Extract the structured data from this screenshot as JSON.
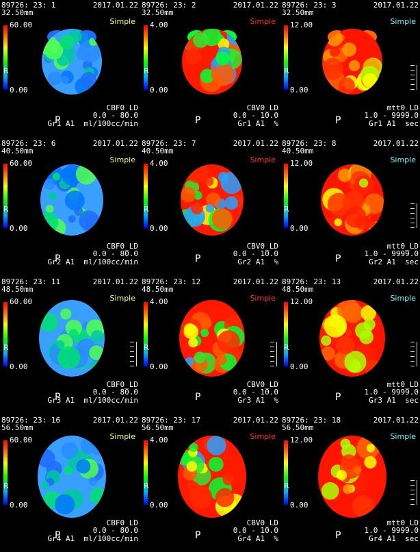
{
  "colorbar": {
    "stops": [
      "#ff0000",
      "#ff7a00",
      "#ffff00",
      "#00ff00",
      "#00b0ff",
      "#0000ff"
    ]
  },
  "rows": [
    {
      "panels": [
        {
          "id": "89726: 23: 1",
          "date": "2017.01.22",
          "slice": "32.50mm",
          "method": "Simple",
          "method_color": "#ffff66",
          "max": "60.00",
          "min": "0.00",
          "marker": "R",
          "map": "CBF0_LD",
          "range": "0.0 - 80.0",
          "units": "Gr1 A1  ml/100cc/min",
          "orient": "P",
          "scheme": "blue",
          "scale": false
        },
        {
          "id": "89726: 23: 2",
          "date": "2017.01.22",
          "slice": "32.50mm",
          "method": "Simple",
          "method_color": "#ff3333",
          "max": "4.00",
          "min": "0.00",
          "marker": "R",
          "map": "CBV0_LD",
          "range": "0.0 - 10.0",
          "units": "Gr1 A1  %",
          "orient": "P",
          "scheme": "red",
          "scale": false
        },
        {
          "id": "89726: 23: 3",
          "date": "2017.01.22",
          "slice": "32.50mm",
          "method": "Simple",
          "method_color": "#66ffff",
          "max": "12.00",
          "min": "0.00",
          "marker": "R",
          "map": "mtt0_LD",
          "range": "1.0 - 9999.0",
          "units": "Gr1 A1  sec",
          "orient": "P",
          "scheme": "hot",
          "scale": true
        }
      ]
    },
    {
      "panels": [
        {
          "id": "89726: 23: 6",
          "date": "2017.01.22",
          "slice": "40.50mm",
          "method": "Simple",
          "method_color": "#ffff66",
          "max": "60.00",
          "min": "0.00",
          "marker": "R",
          "map": "CBF0_LD",
          "range": "0.0 - 80.0",
          "units": "Gr2 A1  ml/100cc/min",
          "orient": "P",
          "scheme": "blue",
          "scale": false
        },
        {
          "id": "89726: 23: 7",
          "date": "2017.01.22",
          "slice": "40.50mm",
          "method": "Simple",
          "method_color": "#ff3333",
          "max": "4.00",
          "min": "0.00",
          "marker": "R",
          "map": "CBV0_LD",
          "range": "0.0 - 10.0",
          "units": "Gr2 A1  %",
          "orient": "P",
          "scheme": "red",
          "scale": false
        },
        {
          "id": "89726: 23: 8",
          "date": "2017.01.22",
          "slice": "40.50mm",
          "method": "Simple",
          "method_color": "#66ffff",
          "max": "12.00",
          "min": "0.00",
          "marker": "R",
          "map": "mtt0_LD",
          "range": "1.0 - 9999.0",
          "units": "Gr2 A1  sec",
          "orient": "P",
          "scheme": "hot",
          "scale": true
        }
      ]
    },
    {
      "panels": [
        {
          "id": "89726: 23: 11",
          "date": "2017.01.22",
          "slice": "48.50mm",
          "method": "Simple",
          "method_color": "#ffff66",
          "max": "60.00",
          "min": "0.00",
          "marker": "R",
          "map": "CBF0_LD",
          "range": "0.0 - 80.0",
          "units": "Gr3 A1  ml/100cc/min",
          "orient": "P",
          "scheme": "blue",
          "scale": true
        },
        {
          "id": "89726: 23: 12",
          "date": "2017.01.22",
          "slice": "48.50mm",
          "method": "Simple",
          "method_color": "#ff3333",
          "max": "4.00",
          "min": "0.00",
          "marker": "R",
          "map": "CBV0_LD",
          "range": "0.0 - 10.0",
          "units": "Gr3 A1  %",
          "orient": "P",
          "scheme": "red",
          "scale": true
        },
        {
          "id": "89726: 23: 13",
          "date": "2017.01.22",
          "slice": "48.50mm",
          "method": "Simple",
          "method_color": "#66ffff",
          "max": "12.00",
          "min": "0.00",
          "marker": "R",
          "map": "mtt0_LD",
          "range": "1.0 - 9999.0",
          "units": "Gr3 A1  sec",
          "orient": "P",
          "scheme": "hot",
          "scale": true
        }
      ]
    },
    {
      "panels": [
        {
          "id": "89726: 23: 16",
          "date": "2017.01.22",
          "slice": "56.50mm",
          "method": "Simple",
          "method_color": "#ffff66",
          "max": "60.00",
          "min": "0.00",
          "marker": "R",
          "map": "CBF0_LD",
          "range": "0.0 - 80.0",
          "units": "Gr4 A1  ml/100cc/min",
          "orient": "P",
          "scheme": "blue",
          "scale": false
        },
        {
          "id": "89726: 23: 17",
          "date": "2017.01.22",
          "slice": "56.50mm",
          "method": "Simple",
          "method_color": "#ff3333",
          "max": "4.00",
          "min": "0.00",
          "marker": "R",
          "map": "CBV0_LD",
          "range": "0.0 - 10.0",
          "units": "Gr4 A1  %",
          "orient": "P",
          "scheme": "red",
          "scale": false
        },
        {
          "id": "89726: 23: 18",
          "date": "2017.01.22",
          "slice": "56.50mm",
          "method": "Simple",
          "method_color": "#66ffff",
          "max": "12.00",
          "min": "0.00",
          "marker": "R",
          "map": "mtt0_LD",
          "range": "1.0 - 9999.0",
          "units": "Gr4 A1  sec",
          "orient": "P",
          "scheme": "hot",
          "scale": true
        }
      ]
    }
  ]
}
